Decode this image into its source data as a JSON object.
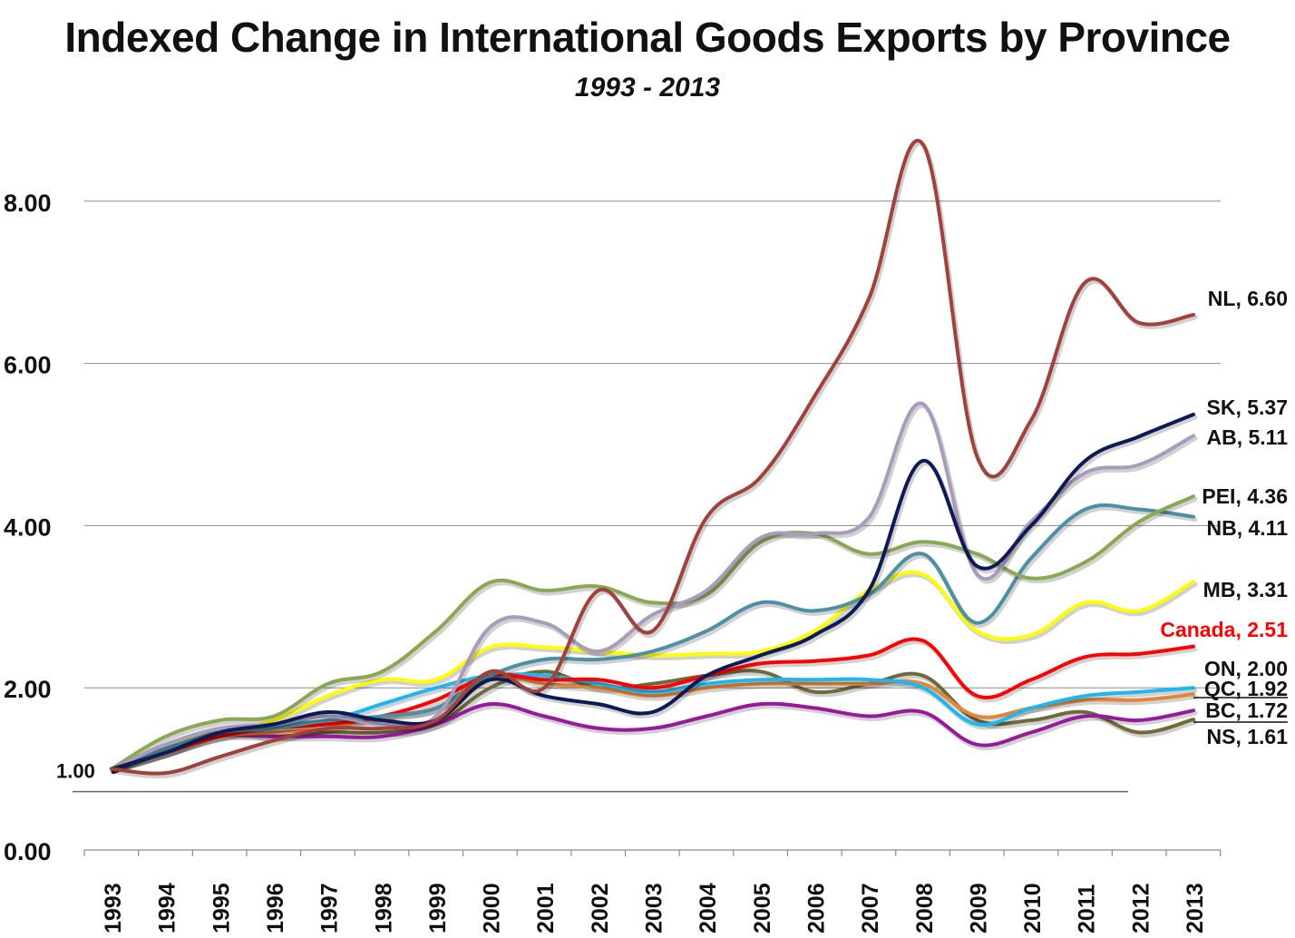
{
  "chart_data": {
    "type": "line",
    "title": "Indexed Change in International Goods Exports by Province",
    "subtitle": "1993 - 2013",
    "xlabel": "",
    "ylabel": "",
    "x": [
      "1993",
      "1994",
      "1995",
      "1996",
      "1997",
      "1998",
      "1999",
      "2000",
      "2001",
      "2002",
      "2003",
      "2004",
      "2005",
      "2006",
      "2007",
      "2008",
      "2009",
      "2010",
      "2011",
      "2012",
      "2013"
    ],
    "ylim": [
      0,
      9
    ],
    "yticks": [
      "0.00",
      "2.00",
      "4.00",
      "6.00",
      "8.00"
    ],
    "ytick_values": [
      0,
      2,
      4,
      6,
      8
    ],
    "baseline_label": "1.00",
    "baseline_value": 1.0,
    "grid": true,
    "series": [
      {
        "name": "NL",
        "end_label": "NL, 6.60",
        "color": "#A0413C",
        "values": [
          1.0,
          0.95,
          1.15,
          1.35,
          1.5,
          1.5,
          1.6,
          2.2,
          2.0,
          3.2,
          2.7,
          4.1,
          4.6,
          5.6,
          6.8,
          8.7,
          4.85,
          5.3,
          7.0,
          6.5,
          6.6
        ]
      },
      {
        "name": "SK",
        "end_label": "SK, 5.37",
        "color": "#0D1A55",
        "values": [
          1.0,
          1.2,
          1.45,
          1.55,
          1.7,
          1.6,
          1.6,
          2.1,
          1.9,
          1.8,
          1.7,
          2.15,
          2.4,
          2.65,
          3.2,
          4.8,
          3.5,
          4.0,
          4.8,
          5.1,
          5.37
        ]
      },
      {
        "name": "AB",
        "end_label": "AB, 5.11",
        "color": "#A99BBE",
        "values": [
          1.0,
          1.3,
          1.5,
          1.55,
          1.65,
          1.55,
          1.65,
          2.75,
          2.8,
          2.45,
          2.9,
          3.2,
          3.85,
          3.9,
          4.1,
          5.5,
          3.4,
          4.05,
          4.65,
          4.75,
          5.11
        ]
      },
      {
        "name": "PEI",
        "end_label": "PEI, 4.36",
        "color": "#8AA753",
        "values": [
          1.0,
          1.4,
          1.6,
          1.65,
          2.05,
          2.2,
          2.7,
          3.3,
          3.2,
          3.25,
          3.05,
          3.15,
          3.8,
          3.9,
          3.65,
          3.8,
          3.65,
          3.35,
          3.55,
          4.05,
          4.36
        ]
      },
      {
        "name": "NB",
        "end_label": "NB, 4.11",
        "color": "#4C90A5",
        "values": [
          1.0,
          1.25,
          1.45,
          1.5,
          1.6,
          1.65,
          1.75,
          2.15,
          2.35,
          2.35,
          2.45,
          2.7,
          3.05,
          2.95,
          3.15,
          3.65,
          2.8,
          3.6,
          4.2,
          4.2,
          4.11
        ]
      },
      {
        "name": "MB",
        "end_label": "MB, 3.31",
        "color": "#FFFF00",
        "values": [
          1.0,
          1.3,
          1.45,
          1.6,
          1.9,
          2.1,
          2.1,
          2.5,
          2.5,
          2.45,
          2.4,
          2.42,
          2.45,
          2.7,
          3.2,
          3.4,
          2.7,
          2.65,
          3.05,
          2.95,
          3.31
        ]
      },
      {
        "name": "Canada",
        "end_label": "Canada, 2.51",
        "color": "#FF0000",
        "values": [
          1.0,
          1.2,
          1.4,
          1.5,
          1.55,
          1.65,
          1.85,
          2.15,
          2.1,
          2.1,
          2.0,
          2.15,
          2.3,
          2.33,
          2.4,
          2.58,
          1.9,
          2.1,
          2.38,
          2.42,
          2.51
        ]
      },
      {
        "name": "ON",
        "end_label": "ON, 2.00",
        "color": "#1FB5F0",
        "values": [
          1.0,
          1.25,
          1.45,
          1.55,
          1.6,
          1.8,
          2.0,
          2.15,
          2.15,
          2.05,
          1.95,
          2.05,
          2.1,
          2.1,
          2.1,
          2.0,
          1.55,
          1.75,
          1.9,
          1.95,
          2.0
        ]
      },
      {
        "name": "QC",
        "end_label": "QC, 1.92",
        "color": "#E2873A",
        "values": [
          1.0,
          1.2,
          1.4,
          1.45,
          1.5,
          1.65,
          1.75,
          2.15,
          2.05,
          2.0,
          1.9,
          2.0,
          2.05,
          2.05,
          2.05,
          2.05,
          1.65,
          1.75,
          1.85,
          1.85,
          1.92
        ]
      },
      {
        "name": "BC",
        "end_label": "BC, 1.72",
        "color": "#981A9C",
        "values": [
          1.0,
          1.2,
          1.4,
          1.4,
          1.4,
          1.4,
          1.55,
          1.8,
          1.65,
          1.5,
          1.5,
          1.65,
          1.8,
          1.75,
          1.65,
          1.7,
          1.3,
          1.45,
          1.65,
          1.6,
          1.72
        ]
      },
      {
        "name": "NS",
        "end_label": "NS, 1.61",
        "color": "#6E6A3C",
        "values": [
          1.0,
          1.25,
          1.45,
          1.4,
          1.45,
          1.45,
          1.55,
          2.0,
          2.2,
          2.0,
          2.05,
          2.15,
          2.2,
          1.95,
          2.05,
          2.15,
          1.6,
          1.6,
          1.7,
          1.45,
          1.61
        ]
      }
    ]
  }
}
